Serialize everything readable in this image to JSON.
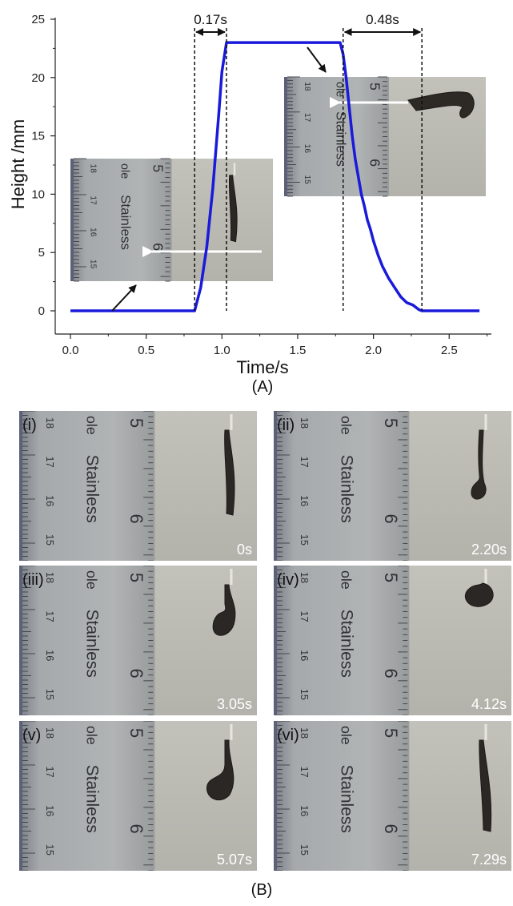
{
  "chart_data": {
    "type": "line",
    "xlabel": "Time/s",
    "ylabel": "Height /mm",
    "xlim": [
      -0.1,
      2.8
    ],
    "ylim": [
      -1.5,
      25
    ],
    "xticks": [
      "0.0",
      "0.5",
      "1.0",
      "1.5",
      "2.0",
      "2.5"
    ],
    "yticks": [
      "0",
      "5",
      "10",
      "15",
      "20",
      "25"
    ],
    "series": [
      {
        "color": "#1a1adb",
        "x": [
          0.0,
          0.82,
          0.86,
          0.9,
          0.94,
          0.98,
          1.0,
          1.03,
          1.05,
          1.2,
          1.5,
          1.78,
          1.8,
          1.82,
          1.84,
          1.86,
          1.88,
          1.9,
          1.92,
          1.94,
          1.96,
          1.98,
          2.0,
          2.03,
          2.06,
          2.1,
          2.14,
          2.18,
          2.22,
          2.26,
          2.3,
          2.32,
          2.5,
          2.7
        ],
        "y": [
          0,
          0,
          2.0,
          5.5,
          10.5,
          17.0,
          20.5,
          23.0,
          23.0,
          23.0,
          23.0,
          23.0,
          22.0,
          20.0,
          17.5,
          15.0,
          13.0,
          11.5,
          10.0,
          9.0,
          7.8,
          7.0,
          6.0,
          4.8,
          3.8,
          2.8,
          2.0,
          1.2,
          0.7,
          0.5,
          0.1,
          0,
          0,
          0
        ]
      }
    ],
    "annotations": [
      {
        "text": "0.17s",
        "x_start": 0.82,
        "x_end": 1.03
      },
      {
        "text": "0.48s",
        "x_start": 1.8,
        "x_end": 2.32
      }
    ],
    "inset_labels": {
      "ruler_word": "Stainless",
      "ruler_numbers": [
        "5",
        "6",
        "18",
        "17",
        "16",
        "15"
      ],
      "ruler_fragment": "ole"
    }
  },
  "figure": {
    "panel_a_label": "(A)",
    "panel_b_label": "(B)",
    "photos": [
      {
        "label": "(i)",
        "time": "0s",
        "pose": "straight"
      },
      {
        "label": "(ii)",
        "time": "2.20s",
        "pose": "curl-small"
      },
      {
        "label": "(iii)",
        "time": "3.05s",
        "pose": "curl-loop"
      },
      {
        "label": "(iv)",
        "time": "4.12s",
        "pose": "curl-top"
      },
      {
        "label": "(v)",
        "time": "5.07s",
        "pose": "curl-open"
      },
      {
        "label": "(vi)",
        "time": "7.29s",
        "pose": "straight-dark"
      }
    ]
  },
  "colors": {
    "line": "#1a1adb",
    "photo_bg": "#b9b9b2",
    "ruler": "#a4a8aa"
  }
}
